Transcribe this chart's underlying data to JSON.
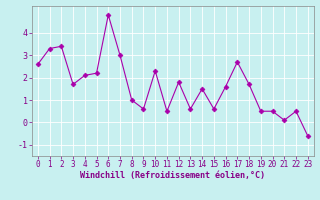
{
  "xlabel": "Windchill (Refroidissement éolien,°C)",
  "x": [
    0,
    1,
    2,
    3,
    4,
    5,
    6,
    7,
    8,
    9,
    10,
    11,
    12,
    13,
    14,
    15,
    16,
    17,
    18,
    19,
    20,
    21,
    22,
    23
  ],
  "y": [
    2.6,
    3.3,
    3.4,
    1.7,
    2.1,
    2.2,
    4.8,
    3.0,
    1.0,
    0.6,
    2.3,
    0.5,
    1.8,
    0.6,
    1.5,
    0.6,
    1.6,
    2.7,
    1.7,
    0.5,
    0.5,
    0.1,
    0.5,
    -0.6
  ],
  "line_color": "#aa00aa",
  "marker": "D",
  "markersize": 2.5,
  "background_color": "#c8f0f0",
  "grid_color": "#b0d8d8",
  "ylim": [
    -1.5,
    5.2
  ],
  "xlim": [
    -0.5,
    23.5
  ],
  "yticks": [
    -1,
    0,
    1,
    2,
    3,
    4
  ],
  "xticks": [
    0,
    1,
    2,
    3,
    4,
    5,
    6,
    7,
    8,
    9,
    10,
    11,
    12,
    13,
    14,
    15,
    16,
    17,
    18,
    19,
    20,
    21,
    22,
    23
  ],
  "linewidth": 0.8,
  "tick_color": "#880088",
  "label_fontsize": 5.5,
  "xlabel_fontsize": 6.0
}
